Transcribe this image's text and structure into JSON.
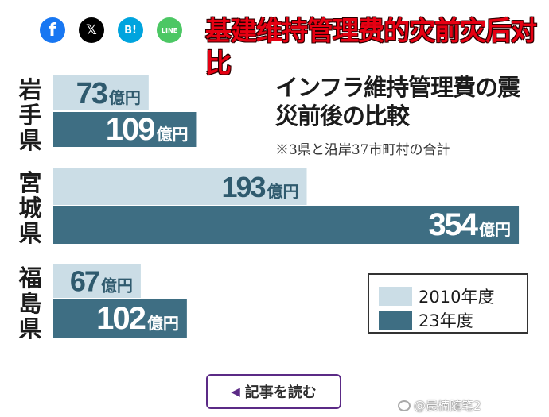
{
  "share": {
    "facebook": "f",
    "x": "𝕏",
    "hatena": "B!",
    "line": "LINE"
  },
  "overlay_title": "基建维持管理费的灾前灾后对比",
  "chart_data": {
    "type": "bar",
    "title": "インフラ維持管理費の震災前後の比較",
    "subtitle": "※3県と沿岸37市町村の合計",
    "unit": "億円",
    "categories": [
      "岩手県",
      "宮城県",
      "福島県"
    ],
    "series": [
      {
        "name": "2010年度",
        "values": [
          73,
          193,
          67
        ],
        "color": "#cbdde6"
      },
      {
        "name": "23年度",
        "values": [
          109,
          354,
          102
        ],
        "color": "#3e6e83"
      }
    ],
    "xlim": [
      0,
      360
    ],
    "legend_position": "bottom-right"
  },
  "read_more": "記事を読む",
  "watermark": "@晨楠随笔2"
}
